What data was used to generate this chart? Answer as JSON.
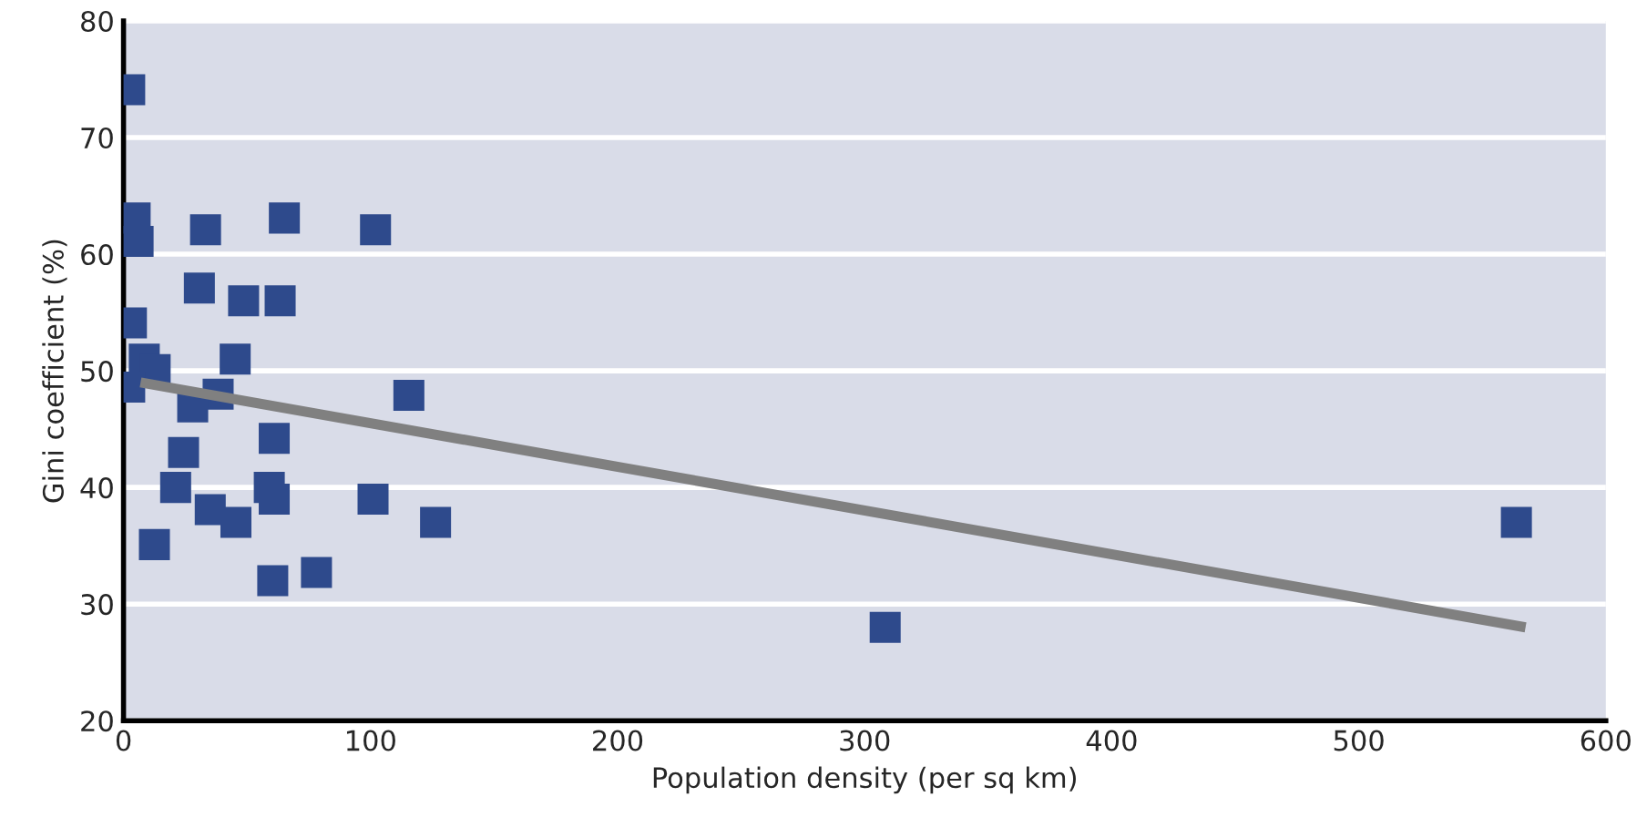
{
  "chart_data": {
    "type": "scatter",
    "xlabel": "Population density (per sq km)",
    "ylabel": "Gini coefficient (%)",
    "xlim": [
      0,
      600
    ],
    "xticks": [
      0,
      100,
      200,
      300,
      400,
      500,
      600
    ],
    "ylim": [
      20,
      80
    ],
    "yticks": [
      20,
      30,
      40,
      50,
      60,
      70,
      80
    ],
    "grid": "y",
    "legend": false,
    "series": [
      {
        "marker": "square",
        "color": "#2e4a8c",
        "x": [
          2.5,
          4.7,
          5.9,
          33.2,
          65.1,
          102,
          30.7,
          48.6,
          63.4,
          3.2,
          8.4,
          12.8,
          45.2,
          2.5,
          38.3,
          28,
          115.5,
          61,
          24.3,
          21.1,
          59,
          61,
          101,
          35.1,
          45.5,
          126.3,
          12.5,
          60.4,
          78.1,
          563.8,
          308.3
        ],
        "values": [
          74.1,
          63.1,
          61.1,
          62.1,
          63.1,
          62.1,
          57.1,
          56.0,
          56.0,
          54.1,
          51.0,
          50.1,
          51.0,
          48.6,
          48.0,
          46.9,
          47.9,
          44.2,
          43.0,
          40.0,
          40.0,
          39.0,
          39.0,
          38.1,
          37.0,
          37.0,
          35.1,
          32.0,
          32.7,
          37.0,
          28.0
        ]
      },
      {
        "type": "line",
        "marker": "none",
        "color": "#808080",
        "x": [
          6.9,
          567.5
        ],
        "values": [
          49.0,
          28.0
        ]
      }
    ]
  }
}
